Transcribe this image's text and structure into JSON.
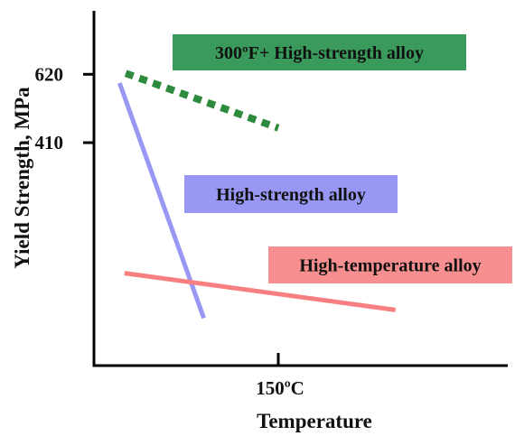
{
  "chart_data": {
    "type": "line",
    "title": "",
    "xlabel": "Temperature",
    "ylabel": "Yield Strength, MPa",
    "x_ticks": [
      {
        "value": 150,
        "label": "150ºC"
      }
    ],
    "y_ticks": [
      {
        "value": 410,
        "label": "410"
      },
      {
        "value": 620,
        "label": "620"
      }
    ],
    "xlim": [
      -1,
      338
    ],
    "ylim": [
      -275,
      815
    ],
    "grid": false,
    "legend": "none",
    "series": [
      {
        "name": "300ºF+ High-strength alloy",
        "color": "#2e8b3e",
        "label_bg": "#3a9a5c",
        "label_text_color": "#111111",
        "style": "dashed",
        "x": [
          25,
          150
        ],
        "y": [
          623,
          455
        ]
      },
      {
        "name": "High-strength alloy",
        "color": "#9898f4",
        "label_bg": "#9898f4",
        "label_text_color": "#111111",
        "style": "solid",
        "x": [
          20,
          89
        ],
        "y": [
          593,
          -129
        ]
      },
      {
        "name": "High-temperature alloy",
        "color": "#f77f80",
        "label_bg": "#f78f90",
        "label_text_color": "#111111",
        "style": "solid",
        "x": [
          24,
          246
        ],
        "y": [
          9,
          -104
        ]
      }
    ]
  }
}
